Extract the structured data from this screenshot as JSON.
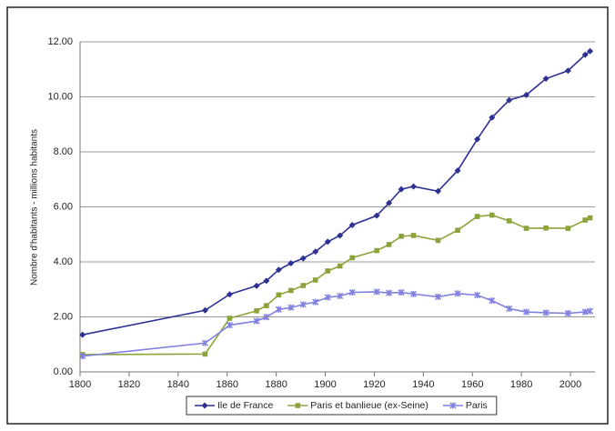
{
  "chart_data": {
    "type": "line",
    "ylabel": "Nombre d'habitants - millions habitants",
    "x": [
      1801,
      1851,
      1861,
      1872,
      1876,
      1881,
      1886,
      1891,
      1896,
      1901,
      1906,
      1911,
      1921,
      1926,
      1931,
      1936,
      1946,
      1954,
      1962,
      1968,
      1975,
      1982,
      1990,
      1999,
      2006,
      2008
    ],
    "series": [
      {
        "name": "Ile de France",
        "color": "#2e3192",
        "marker": "diamond",
        "values": [
          1.35,
          2.24,
          2.82,
          3.13,
          3.31,
          3.71,
          3.95,
          4.13,
          4.37,
          4.73,
          4.96,
          5.34,
          5.68,
          6.14,
          6.64,
          6.74,
          6.57,
          7.32,
          8.46,
          9.25,
          9.88,
          10.07,
          10.66,
          10.95,
          11.53,
          11.66
        ]
      },
      {
        "name": "Paris et banlieue (ex-Seine)",
        "color": "#8ca33c",
        "marker": "square",
        "values": [
          0.63,
          0.65,
          1.95,
          2.22,
          2.41,
          2.8,
          2.96,
          3.14,
          3.34,
          3.67,
          3.85,
          4.15,
          4.41,
          4.63,
          4.93,
          4.96,
          4.78,
          5.15,
          5.65,
          5.7,
          5.49,
          5.22,
          5.23,
          5.22,
          5.52,
          5.6
        ]
      },
      {
        "name": "Paris",
        "color": "#8080e0",
        "marker": "star",
        "values": [
          0.57,
          1.05,
          1.7,
          1.85,
          1.99,
          2.27,
          2.34,
          2.45,
          2.54,
          2.71,
          2.76,
          2.89,
          2.91,
          2.87,
          2.89,
          2.83,
          2.73,
          2.85,
          2.79,
          2.59,
          2.3,
          2.18,
          2.15,
          2.13,
          2.18,
          2.21
        ]
      }
    ],
    "xlim": [
      1800,
      2010
    ],
    "xticks": [
      1800,
      1820,
      1840,
      1860,
      1880,
      1900,
      1920,
      1940,
      1960,
      1980,
      2000
    ],
    "ylim": [
      0,
      12
    ],
    "yticks": [
      {
        "value": 0,
        "label": "0.00"
      },
      {
        "value": 2,
        "label": "2.00"
      },
      {
        "value": 4,
        "label": "4.00"
      },
      {
        "value": 6,
        "label": "6.00"
      },
      {
        "value": 8,
        "label": "8.00"
      },
      {
        "value": 10,
        "label": "10.00"
      },
      {
        "value": 12,
        "label": "12.00"
      }
    ],
    "grid": true,
    "legend": "bottom"
  }
}
